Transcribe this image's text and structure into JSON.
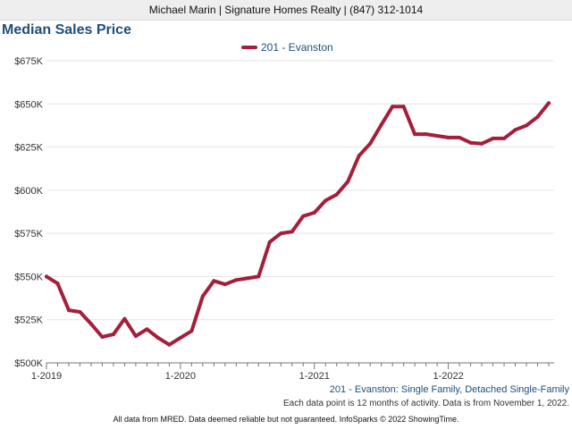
{
  "header": {
    "contact": "Michael Marin | Signature Homes Realty | (847) 312-1014"
  },
  "chart_data": {
    "type": "line",
    "title": "Median Sales Price",
    "xlabel": "",
    "ylabel": "",
    "ylim": [
      500000,
      675000
    ],
    "yticks": [
      "$500K",
      "$525K",
      "$550K",
      "$575K",
      "$600K",
      "$625K",
      "$650K",
      "$675K"
    ],
    "xtick_labels": [
      "1-2019",
      "1-2020",
      "1-2021",
      "1-2022"
    ],
    "grid": true,
    "legend_position": "top",
    "x": [
      "2019-01",
      "2019-02",
      "2019-03",
      "2019-04",
      "2019-05",
      "2019-06",
      "2019-07",
      "2019-08",
      "2019-09",
      "2019-10",
      "2019-11",
      "2019-12",
      "2020-01",
      "2020-02",
      "2020-03",
      "2020-04",
      "2020-05",
      "2020-06",
      "2020-07",
      "2020-08",
      "2020-09",
      "2020-10",
      "2020-11",
      "2020-12",
      "2021-01",
      "2021-02",
      "2021-03",
      "2021-04",
      "2021-05",
      "2021-06",
      "2021-07",
      "2021-08",
      "2021-09",
      "2021-10",
      "2021-11",
      "2021-12",
      "2022-01",
      "2022-02",
      "2022-03",
      "2022-04",
      "2022-05",
      "2022-06",
      "2022-07",
      "2022-08",
      "2022-09",
      "2022-10"
    ],
    "series": [
      {
        "name": "201 - Evanston",
        "color": "#a51e3a",
        "values": [
          550000,
          546000,
          530500,
          529500,
          522500,
          515000,
          516500,
          525500,
          515500,
          519500,
          514500,
          510500,
          514500,
          518500,
          538500,
          547500,
          545500,
          548000,
          549000,
          550000,
          570000,
          575000,
          576000,
          585000,
          587000,
          594000,
          597500,
          605000,
          620000,
          627000,
          638000,
          648500,
          648500,
          632500,
          632500,
          631500,
          630500,
          630500,
          627500,
          627000,
          630000,
          630000,
          635000,
          637500,
          642500,
          650500
        ]
      }
    ]
  },
  "footnotes": {
    "series_desc": "201 - Evanston: Single Family, Detached Single-Family",
    "activity": "Each data point is 12 months of activity. Data is from November 1, 2022.",
    "source": "All data from MRED. Data deemed reliable but not guaranteed. InfoSparks © 2022 ShowingTime."
  }
}
